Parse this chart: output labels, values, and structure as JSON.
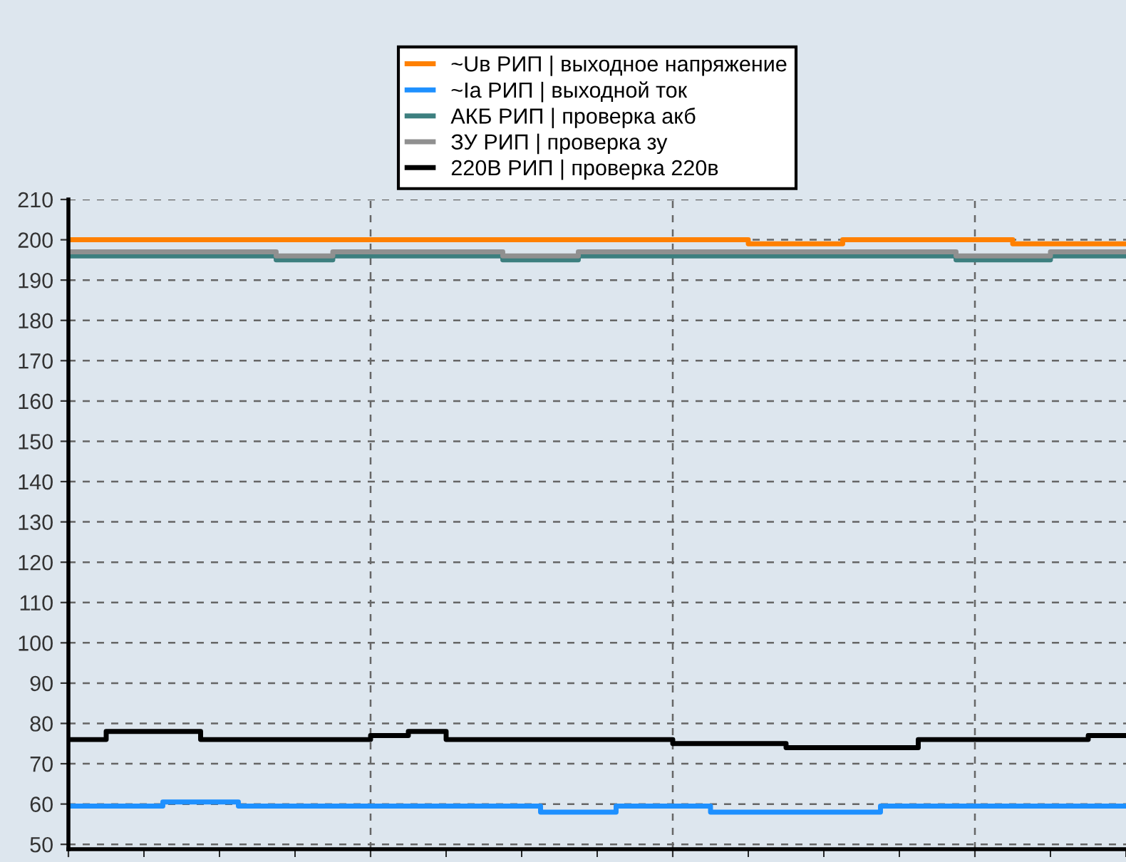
{
  "chart_data": {
    "type": "step",
    "legend": "top",
    "grid": true,
    "line_style": "solid",
    "marker": "none",
    "categories": [
      null,
      null,
      null,
      null,
      null,
      null,
      null,
      null,
      null,
      null,
      null,
      null,
      null,
      null,
      null,
      null,
      null,
      null,
      null,
      null,
      null,
      null,
      null,
      null,
      null,
      null,
      null,
      null,
      null,
      null,
      null,
      null,
      null,
      null,
      null,
      null,
      null,
      null,
      null,
      null,
      null,
      null,
      null,
      null,
      null,
      null,
      null,
      null,
      null,
      null,
      null,
      null,
      null,
      null,
      null,
      null,
      null
    ],
    "ylim": [
      48.8,
      210
    ],
    "yticks": [
      50,
      60,
      70,
      80,
      90,
      100,
      110,
      120,
      130,
      140,
      150,
      160,
      170,
      180,
      190,
      200,
      210
    ],
    "series": [
      {
        "name": "~Uв РИП | выходное напряжение",
        "color": "#ff8000",
        "values": [
          200,
          200,
          200,
          200,
          200,
          200,
          200,
          200,
          200,
          200,
          200,
          200,
          200,
          200,
          200,
          200,
          200,
          200,
          200,
          200,
          200,
          200,
          200,
          200,
          200,
          200,
          200,
          200,
          200,
          200,
          200,
          200,
          200,
          200,
          200,
          200,
          199,
          199,
          199,
          199,
          199,
          200,
          200,
          200,
          200,
          200,
          200,
          200,
          200,
          200,
          199,
          199,
          199,
          199,
          199,
          199,
          199
        ]
      },
      {
        "name": "~Ia РИП | выходной ток",
        "color": "#1e90ff",
        "values": [
          59.5,
          59.5,
          59.5,
          59.5,
          59.5,
          60.5,
          60.5,
          60.5,
          60.5,
          59.5,
          59.5,
          59.5,
          59.5,
          59.5,
          59.5,
          59.5,
          59.5,
          59.5,
          59.5,
          59.5,
          59.5,
          59.5,
          59.5,
          59.5,
          59.5,
          58,
          58,
          58,
          58,
          59.5,
          59.5,
          59.5,
          59.5,
          59.5,
          58,
          58,
          58,
          58,
          58,
          58,
          58,
          58,
          58,
          59.5,
          59.5,
          59.5,
          59.5,
          59.5,
          59.5,
          59.5,
          59.5,
          59.5,
          59.5,
          59.5,
          59.5,
          59.5,
          59.5
        ]
      },
      {
        "name": "АКБ РИП | проверка акб",
        "color": "#3d7f7f",
        "values": [
          196,
          196,
          196,
          196,
          196,
          196,
          196,
          196,
          196,
          196,
          196,
          195,
          195,
          195,
          196,
          196,
          196,
          196,
          196,
          196,
          196,
          196,
          196,
          195,
          195,
          195,
          195,
          196,
          196,
          196,
          196,
          196,
          196,
          196,
          196,
          196,
          196,
          196,
          196,
          196,
          196,
          196,
          196,
          196,
          196,
          196,
          196,
          195,
          195,
          195,
          195,
          195,
          196,
          196,
          196,
          196,
          196
        ]
      },
      {
        "name": "ЗУ РИП | проверка зу",
        "color": "#909090",
        "values": [
          197,
          197,
          197,
          197,
          197,
          197,
          197,
          197,
          197,
          197,
          197,
          196,
          196,
          196,
          197,
          197,
          197,
          197,
          197,
          197,
          197,
          197,
          197,
          196,
          196,
          196,
          196,
          197,
          197,
          197,
          197,
          197,
          197,
          197,
          197,
          197,
          197,
          197,
          197,
          197,
          197,
          197,
          197,
          197,
          197,
          197,
          197,
          196,
          196,
          196,
          196,
          196,
          197,
          197,
          197,
          197,
          197
        ]
      },
      {
        "name": "220В РИП | проверка 220в",
        "color": "#000000",
        "values": [
          76,
          76,
          78,
          78,
          78,
          78,
          78,
          76,
          76,
          76,
          76,
          76,
          76,
          76,
          76,
          76,
          77,
          77,
          78,
          78,
          76,
          76,
          76,
          76,
          76,
          76,
          76,
          76,
          76,
          76,
          76,
          76,
          75,
          75,
          75,
          75,
          75,
          75,
          74,
          74,
          74,
          74,
          74,
          74,
          74,
          76,
          76,
          76,
          76,
          76,
          76,
          76,
          76,
          76,
          77,
          77,
          77
        ]
      }
    ]
  }
}
